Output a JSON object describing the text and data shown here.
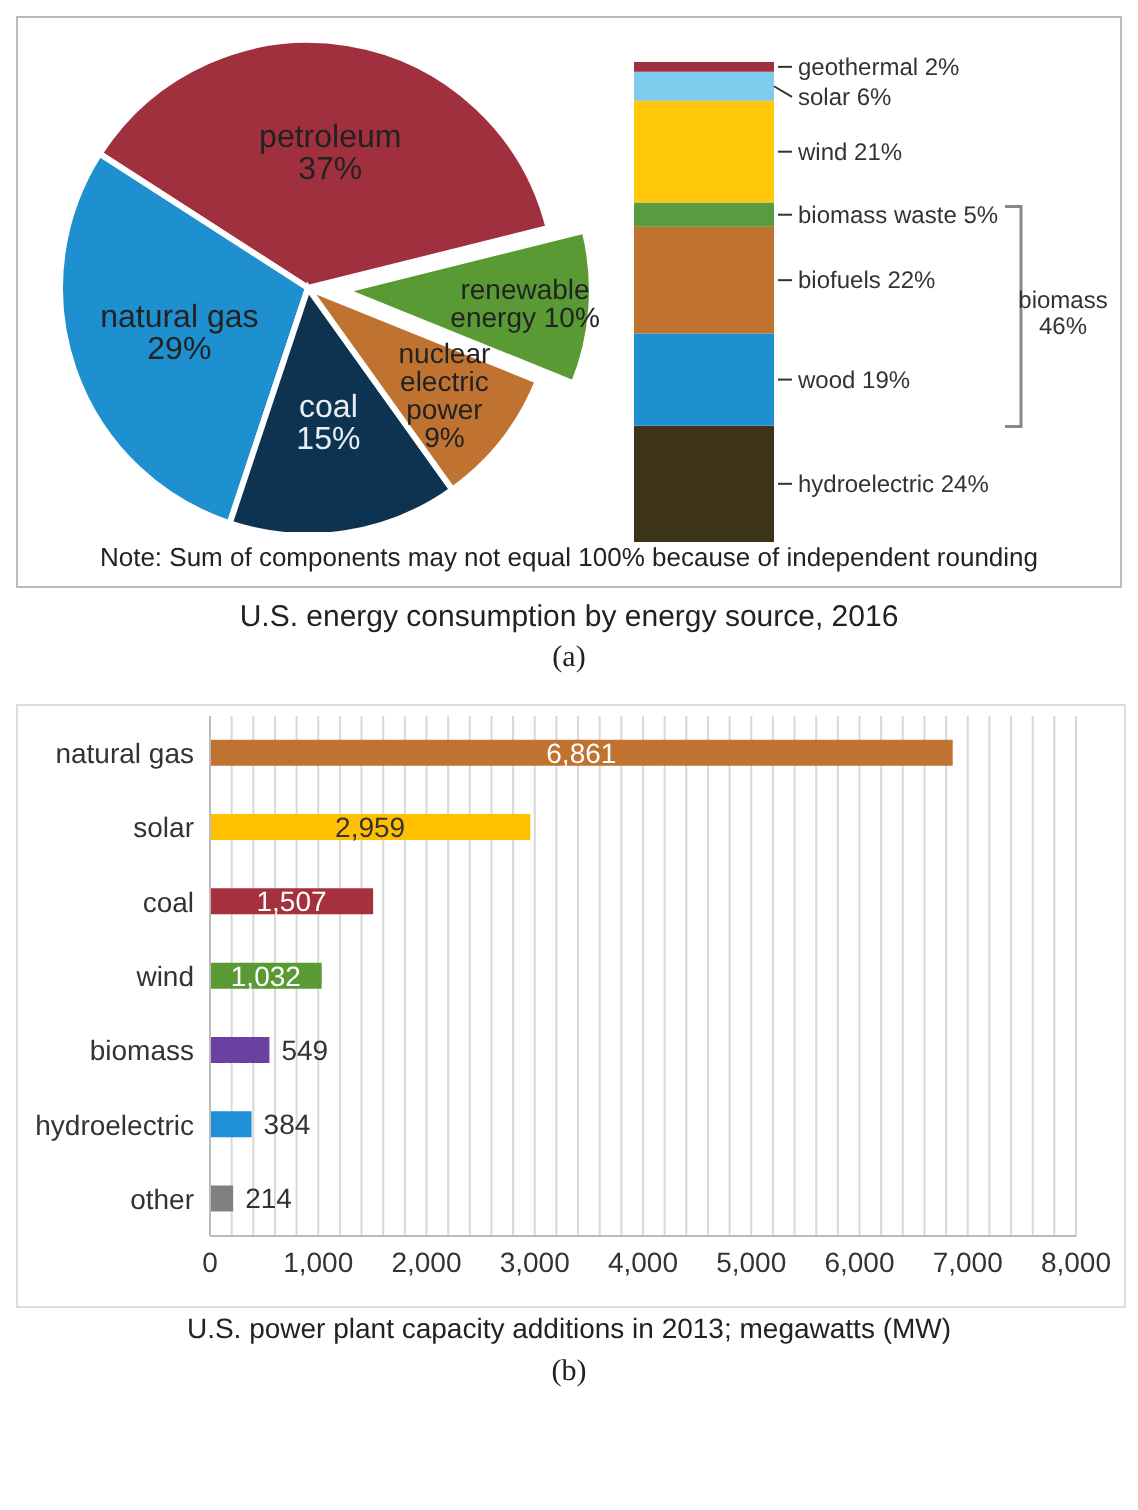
{
  "chart_data": [
    {
      "type": "pie",
      "title": "U.S. energy consumption by energy source, 2016",
      "categories": [
        "petroleum",
        "natural gas",
        "coal",
        "nuclear electric power",
        "renewable energy"
      ],
      "values": [
        37,
        29,
        15,
        9,
        10
      ],
      "value_labels": [
        "37%",
        "29%",
        "15%",
        "9%",
        "10%"
      ],
      "colors": [
        "#a0303e",
        "#1e90d0",
        "#0d3350",
        "#c07330",
        "#5a9a35"
      ],
      "annotations": [
        "Note: Sum of components may not equal 100% because of independent rounding",
        "(a)"
      ]
    },
    {
      "type": "bar",
      "stacked": true,
      "categories": [
        null
      ],
      "series": [
        {
          "color": "#3d3318",
          "values": [
            24
          ],
          "value_labels": [
            "hydroelectric 24%"
          ]
        },
        {
          "color": "#1e90d0",
          "values": [
            19
          ],
          "value_labels": [
            "wood 19%"
          ]
        },
        {
          "color": "#c07330",
          "values": [
            22
          ],
          "value_labels": [
            "biofuels 22%"
          ]
        },
        {
          "color": "#5a9a40",
          "values": [
            5
          ],
          "value_labels": [
            "biomass waste 5%"
          ]
        },
        {
          "color": "#ffc80a",
          "values": [
            21
          ],
          "value_labels": [
            "wind 21%"
          ]
        },
        {
          "color": "#80ccee",
          "values": [
            6
          ],
          "value_labels": [
            "solar 6%"
          ]
        },
        {
          "color": "#a03040",
          "values": [
            2
          ],
          "value_labels": [
            "geothermal 2%"
          ]
        }
      ],
      "annotations": [
        "biomass 46%"
      ]
    },
    {
      "type": "bar",
      "orientation": "horizontal",
      "categories": [
        "natural gas",
        "solar",
        "coal",
        "wind",
        "biomass",
        "hydroelectric",
        "other"
      ],
      "values": [
        6861,
        2959,
        1507,
        1032,
        549,
        384,
        214
      ],
      "value_labels": [
        "6,861",
        "2,959",
        "1,507",
        "1,032",
        "549",
        "384",
        "214"
      ],
      "colors": [
        "#c07330",
        "#ffc000",
        "#a5303e",
        "#5a9a35",
        "#6a40a0",
        "#1e90d8",
        "#808080"
      ],
      "data_labels": true,
      "xlabel": "U.S. power plant capacity additions in 2013; megawatts (MW)",
      "xlim": [
        0,
        8000
      ],
      "grid": "x",
      "annotations": [
        "(b)"
      ],
      "xticks": [
        {
          "value": 0,
          "label": "0"
        },
        {
          "value": 200,
          "label": null
        },
        {
          "value": 400,
          "label": null
        },
        {
          "value": 600,
          "label": null
        },
        {
          "value": 800,
          "label": null
        },
        {
          "value": 1000,
          "label": "1,000"
        },
        {
          "value": 1200,
          "label": null
        },
        {
          "value": 1400,
          "label": null
        },
        {
          "value": 1600,
          "label": null
        },
        {
          "value": 1800,
          "label": null
        },
        {
          "value": 2000,
          "label": "2,000"
        },
        {
          "value": 2200,
          "label": null
        },
        {
          "value": 2400,
          "label": null
        },
        {
          "value": 2600,
          "label": null
        },
        {
          "value": 2800,
          "label": null
        },
        {
          "value": 3000,
          "label": "3,000"
        },
        {
          "value": 3200,
          "label": null
        },
        {
          "value": 3400,
          "label": null
        },
        {
          "value": 3600,
          "label": null
        },
        {
          "value": 3800,
          "label": null
        },
        {
          "value": 4000,
          "label": "4,000"
        },
        {
          "value": 4200,
          "label": null
        },
        {
          "value": 4400,
          "label": null
        },
        {
          "value": 4600,
          "label": null
        },
        {
          "value": 4800,
          "label": null
        },
        {
          "value": 5000,
          "label": "5,000"
        },
        {
          "value": 5200,
          "label": null
        },
        {
          "value": 5400,
          "label": null
        },
        {
          "value": 5600,
          "label": null
        },
        {
          "value": 5800,
          "label": null
        },
        {
          "value": 6000,
          "label": "6,000"
        },
        {
          "value": 6200,
          "label": null
        },
        {
          "value": 6400,
          "label": null
        },
        {
          "value": 6600,
          "label": null
        },
        {
          "value": 6800,
          "label": null
        },
        {
          "value": 7000,
          "label": "7,000"
        },
        {
          "value": 7200,
          "label": null
        },
        {
          "value": 7400,
          "label": null
        },
        {
          "value": 7600,
          "label": null
        },
        {
          "value": 7800,
          "label": null
        },
        {
          "value": 8000,
          "label": "8,000"
        }
      ]
    }
  ]
}
